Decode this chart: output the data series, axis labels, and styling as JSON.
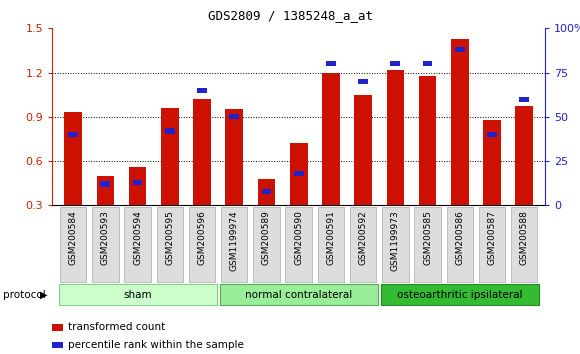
{
  "title": "GDS2809 / 1385248_a_at",
  "samples": [
    "GSM200584",
    "GSM200593",
    "GSM200594",
    "GSM200595",
    "GSM200596",
    "GSM1199974",
    "GSM200589",
    "GSM200590",
    "GSM200591",
    "GSM200592",
    "GSM1199973",
    "GSM200585",
    "GSM200586",
    "GSM200587",
    "GSM200588"
  ],
  "red_values": [
    0.93,
    0.5,
    0.56,
    0.96,
    1.02,
    0.95,
    0.48,
    0.72,
    1.2,
    1.05,
    1.22,
    1.18,
    1.43,
    0.88,
    0.97
  ],
  "blue_percentile": [
    40,
    12,
    13,
    42,
    65,
    50,
    8,
    18,
    80,
    70,
    80,
    80,
    88,
    40,
    60
  ],
  "groups": [
    {
      "label": "sham",
      "start": 0,
      "end": 4,
      "color": "#ccffcc",
      "edge": "#88cc88"
    },
    {
      "label": "normal contralateral",
      "start": 5,
      "end": 9,
      "color": "#99ee99",
      "edge": "#55aa55"
    },
    {
      "label": "osteoarthritic ipsilateral",
      "start": 10,
      "end": 14,
      "color": "#33bb33",
      "edge": "#228822"
    }
  ],
  "left_ylim": [
    0.3,
    1.5
  ],
  "right_ylim": [
    0,
    100
  ],
  "left_yticks": [
    0.3,
    0.6,
    0.9,
    1.2,
    1.5
  ],
  "right_yticks": [
    0,
    25,
    50,
    75,
    100
  ],
  "right_yticklabels": [
    "0",
    "25",
    "50",
    "75",
    "100%"
  ],
  "bar_width": 0.55,
  "red_color": "#cc1100",
  "blue_color": "#2222cc",
  "grid_color": "#000000",
  "bg_color": "#ffffff",
  "tick_label_color": "#cc2200",
  "right_tick_color": "#2222cc",
  "legend_red": "transformed count",
  "legend_blue": "percentile rank within the sample",
  "protocol_label": "protocol",
  "title_font": "monospace",
  "title_size": 9
}
